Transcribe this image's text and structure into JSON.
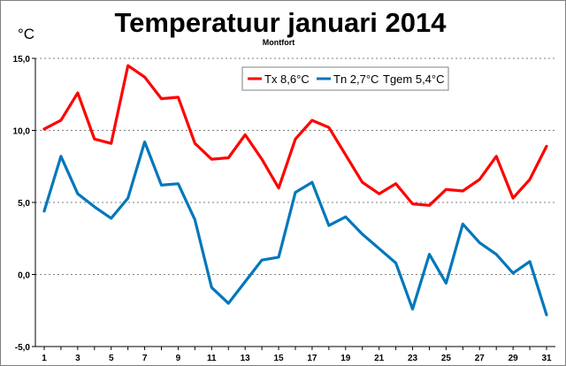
{
  "chart_data": {
    "type": "line",
    "title": "Temperatuur januari 2014",
    "subtitle": "Montfort",
    "ylabel": "°C",
    "xlabel": "",
    "ylim": [
      -5,
      15
    ],
    "xlim": [
      1,
      31
    ],
    "y_ticks": [
      "15,0",
      "10,0",
      "5,0",
      "0,0",
      "-5,0"
    ],
    "y_tick_values": [
      15,
      10,
      5,
      0,
      -5
    ],
    "x_ticks": [
      "1",
      "3",
      "5",
      "7",
      "9",
      "11",
      "13",
      "15",
      "17",
      "19",
      "21",
      "23",
      "25",
      "27",
      "29",
      "31"
    ],
    "x_tick_values": [
      1,
      3,
      5,
      7,
      9,
      11,
      13,
      15,
      17,
      19,
      21,
      23,
      25,
      27,
      29,
      31
    ],
    "grid": "horizontal",
    "legend_position": "top-right",
    "x": [
      1,
      2,
      3,
      4,
      5,
      6,
      7,
      8,
      9,
      10,
      11,
      12,
      13,
      14,
      15,
      16,
      17,
      18,
      19,
      20,
      21,
      22,
      23,
      24,
      25,
      26,
      27,
      28,
      29,
      30,
      31
    ],
    "series": [
      {
        "name": "Tx 8,6°C",
        "color": "#ff0000",
        "values": [
          10.1,
          10.7,
          12.6,
          9.4,
          9.1,
          14.5,
          13.7,
          12.2,
          12.3,
          9.1,
          8.0,
          8.1,
          9.7,
          8.0,
          6.0,
          9.4,
          10.7,
          10.2,
          8.3,
          6.4,
          5.6,
          6.3,
          4.9,
          4.8,
          5.9,
          5.8,
          6.6,
          8.2,
          5.3,
          6.6,
          8.9
        ]
      },
      {
        "name": "Tn 2,7°C",
        "color": "#0077bb",
        "values": [
          4.4,
          8.2,
          5.6,
          4.7,
          3.9,
          5.3,
          9.2,
          6.2,
          6.3,
          3.8,
          -0.9,
          -2.0,
          -0.5,
          1.0,
          1.2,
          5.7,
          6.4,
          3.4,
          4.0,
          2.8,
          1.8,
          0.8,
          -2.4,
          1.4,
          -0.6,
          3.5,
          2.2,
          1.4,
          0.1,
          0.9,
          -2.8
        ]
      }
    ],
    "legend_extra": "Tgem 5,4°C"
  }
}
